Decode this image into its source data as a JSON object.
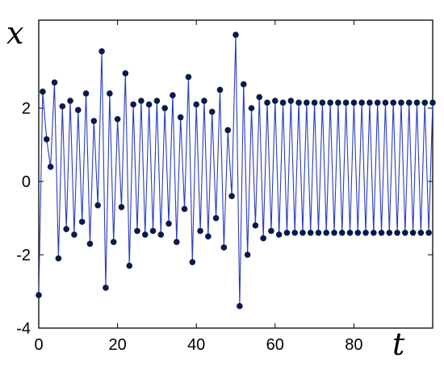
{
  "chart_data": {
    "type": "line",
    "title": "",
    "xlabel": "t",
    "ylabel": "x",
    "xlim": [
      0,
      100
    ],
    "ylim": [
      -4,
      4.4
    ],
    "x_ticks": [
      0,
      20,
      40,
      60,
      80
    ],
    "y_ticks": [
      -4,
      -2,
      0,
      2
    ],
    "grid": false,
    "legend": "none",
    "colors": {
      "line": "#2a3db8",
      "marker": "#0b1a4c",
      "axis": "#000000"
    },
    "series": [
      {
        "markers": "filled-circle",
        "points": [
          [
            0,
            -3.1
          ],
          [
            1,
            2.45
          ],
          [
            2,
            1.15
          ],
          [
            3,
            0.4
          ],
          [
            4,
            2.7
          ],
          [
            5,
            -2.1
          ],
          [
            6,
            2.05
          ],
          [
            7,
            -1.3
          ],
          [
            8,
            2.2
          ],
          [
            9,
            -1.45
          ],
          [
            10,
            1.95
          ],
          [
            11,
            -1.1
          ],
          [
            12,
            2.4
          ],
          [
            13,
            -1.7
          ],
          [
            14,
            1.65
          ],
          [
            15,
            -0.65
          ],
          [
            16,
            3.55
          ],
          [
            17,
            -2.9
          ],
          [
            18,
            2.4
          ],
          [
            19,
            -1.65
          ],
          [
            20,
            1.7
          ],
          [
            21,
            -0.7
          ],
          [
            22,
            2.95
          ],
          [
            23,
            -2.3
          ],
          [
            24,
            2.1
          ],
          [
            25,
            -1.35
          ],
          [
            26,
            2.2
          ],
          [
            27,
            -1.45
          ],
          [
            28,
            2.1
          ],
          [
            29,
            -1.35
          ],
          [
            30,
            2.2
          ],
          [
            31,
            -1.45
          ],
          [
            32,
            2.0
          ],
          [
            33,
            -1.15
          ],
          [
            34,
            2.35
          ],
          [
            35,
            -1.65
          ],
          [
            36,
            1.75
          ],
          [
            37,
            -0.75
          ],
          [
            38,
            2.85
          ],
          [
            39,
            -2.2
          ],
          [
            40,
            2.1
          ],
          [
            41,
            -1.35
          ],
          [
            42,
            2.2
          ],
          [
            43,
            -1.5
          ],
          [
            44,
            1.9
          ],
          [
            45,
            -1.0
          ],
          [
            46,
            2.5
          ],
          [
            47,
            -1.8
          ],
          [
            48,
            1.4
          ],
          [
            49,
            -0.4
          ],
          [
            50,
            4.0
          ],
          [
            51,
            -3.4
          ],
          [
            52,
            2.65
          ],
          [
            53,
            -2.0
          ],
          [
            54,
            2.0
          ],
          [
            55,
            -1.2
          ],
          [
            56,
            2.3
          ],
          [
            57,
            -1.55
          ],
          [
            58,
            2.15
          ],
          [
            59,
            -1.35
          ],
          [
            60,
            2.2
          ],
          [
            61,
            -1.45
          ],
          [
            62,
            2.15
          ],
          [
            63,
            -1.4
          ],
          [
            64,
            2.2
          ],
          [
            65,
            -1.4
          ],
          [
            66,
            2.15
          ],
          [
            67,
            -1.4
          ],
          [
            68,
            2.15
          ],
          [
            69,
            -1.4
          ],
          [
            70,
            2.15
          ],
          [
            71,
            -1.4
          ],
          [
            72,
            2.15
          ],
          [
            73,
            -1.4
          ],
          [
            74,
            2.15
          ],
          [
            75,
            -1.4
          ],
          [
            76,
            2.15
          ],
          [
            77,
            -1.4
          ],
          [
            78,
            2.15
          ],
          [
            79,
            -1.4
          ],
          [
            80,
            2.15
          ],
          [
            81,
            -1.4
          ],
          [
            82,
            2.15
          ],
          [
            83,
            -1.4
          ],
          [
            84,
            2.15
          ],
          [
            85,
            -1.4
          ],
          [
            86,
            2.15
          ],
          [
            87,
            -1.4
          ],
          [
            88,
            2.15
          ],
          [
            89,
            -1.4
          ],
          [
            90,
            2.15
          ],
          [
            91,
            -1.4
          ],
          [
            92,
            2.15
          ],
          [
            93,
            -1.4
          ],
          [
            94,
            2.15
          ],
          [
            95,
            -1.4
          ],
          [
            96,
            2.15
          ],
          [
            97,
            -1.4
          ],
          [
            98,
            2.15
          ],
          [
            99,
            -1.4
          ],
          [
            100,
            2.15
          ]
        ]
      }
    ]
  }
}
